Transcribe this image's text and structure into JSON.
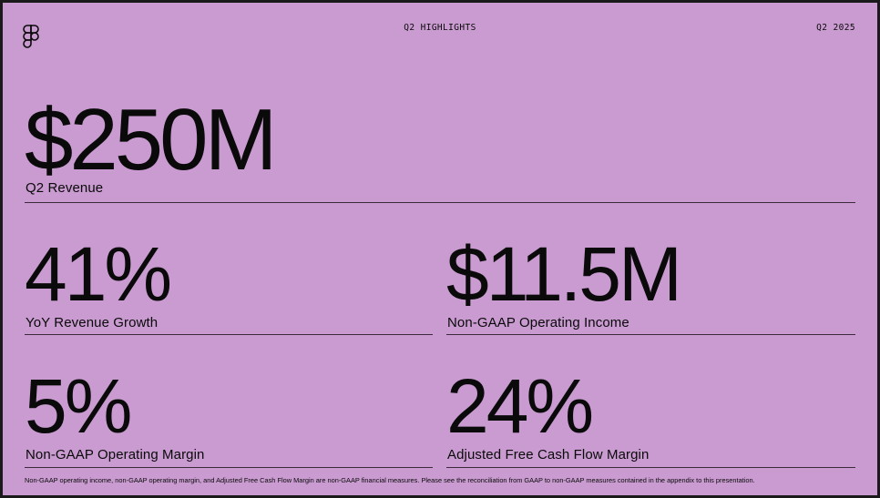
{
  "header": {
    "title": "Q2 HIGHLIGHTS",
    "period": "Q2 2025"
  },
  "logo": {
    "icon": "figma-logo-icon"
  },
  "metrics": [
    {
      "value": "$250M",
      "label": "Q2 Revenue"
    },
    {
      "value": "41%",
      "label": "YoY Revenue Growth"
    },
    {
      "value": "$11.5M",
      "label": "Non-GAAP Operating Income"
    },
    {
      "value": "5%",
      "label": "Non-GAAP Operating Margin"
    },
    {
      "value": "24%",
      "label": "Adjusted Free Cash Flow Margin"
    }
  ],
  "footnote": "Non-GAAP operating income, non-GAAP operating margin, and Adjusted Free Cash Flow Margin are non-GAAP financial measures. Please see the reconciliation from GAAP to non-GAAP measures contained in the appendix to this presentation.",
  "colors": {
    "background": "#c99bd0",
    "text": "#0a0a0a",
    "frame": "#1a1a1a"
  }
}
